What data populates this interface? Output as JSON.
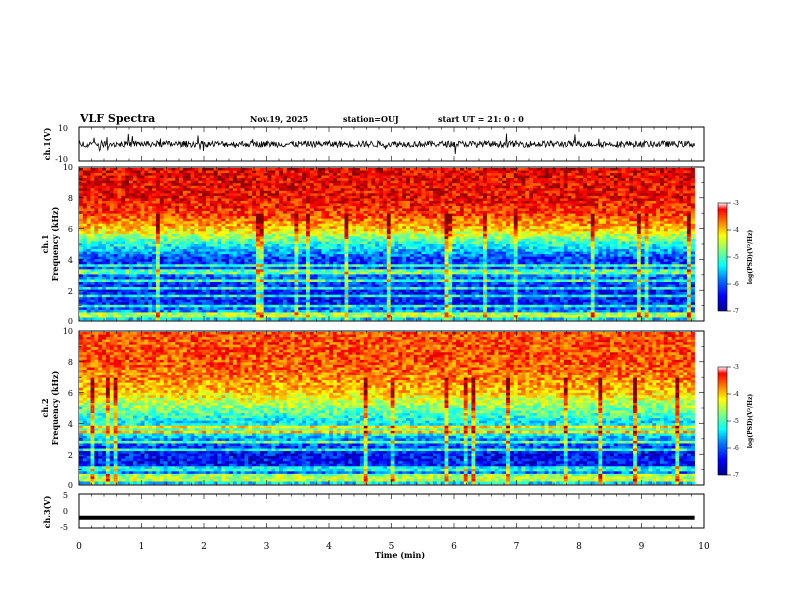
{
  "header": {
    "title": "VLF Spectra",
    "date": "Nov.19, 2025",
    "station": "station=OUJ",
    "start_ut": "start  UT =   21: 0  : 0"
  },
  "colors": {
    "waveform": "#000000",
    "colormap": [
      "#00007f",
      "#0000ff",
      "#007fff",
      "#00ffff",
      "#7fff7f",
      "#ffff00",
      "#ff7f00",
      "#ff0000",
      "#7f0000"
    ]
  },
  "chart_data": [
    {
      "type": "line",
      "panel": "waveform-ch1",
      "ylabel": "ch.1(V)",
      "ylim": [
        -10,
        10
      ],
      "yticks": [
        "10",
        "-10"
      ],
      "xlim": [
        0,
        10
      ],
      "series": [
        {
          "baseline": 0,
          "typical_amplitude": 2
        }
      ]
    },
    {
      "type": "heatmap",
      "panel": "spectrogram-ch1",
      "ylabel_line1": "ch.1",
      "ylabel_line2": "Frequency (kHz)",
      "ylim": [
        0,
        10
      ],
      "yticks": [
        "0",
        "2",
        "4",
        "6",
        "8",
        "10"
      ],
      "xlim": [
        0,
        9.85
      ],
      "colorbar": {
        "label": "log(PSD)(V²/Hz)",
        "range": [
          -7,
          -3
        ],
        "ticks": [
          "-3",
          "-4",
          "-5",
          "-6",
          "-7"
        ]
      },
      "profile_khz": [
        {
          "f": 0,
          "v": -5.6
        },
        {
          "f": 0.5,
          "v": -5.8
        },
        {
          "f": 1,
          "v": -6.4
        },
        {
          "f": 2,
          "v": -6.4
        },
        {
          "f": 3,
          "v": -6.0
        },
        {
          "f": 4,
          "v": -6.3
        },
        {
          "f": 5,
          "v": -5.4
        },
        {
          "f": 6,
          "v": -4.3
        },
        {
          "f": 7,
          "v": -3.7
        },
        {
          "f": 8,
          "v": -3.5
        },
        {
          "f": 10,
          "v": -3.4
        }
      ],
      "tone_lines_khz": [
        0.2,
        0.4,
        0.9,
        1.6,
        2.1,
        2.6,
        3.1,
        3.3,
        3.6
      ]
    },
    {
      "type": "heatmap",
      "panel": "spectrogram-ch2",
      "ylabel_line1": "ch.2",
      "ylabel_line2": "Frequency (kHz)",
      "ylim": [
        0,
        10
      ],
      "yticks": [
        "0",
        "2",
        "4",
        "6",
        "8",
        "10"
      ],
      "xlim": [
        0,
        9.85
      ],
      "colorbar": {
        "label": "log(PSD)(V²/Hz)",
        "range": [
          -7,
          -3
        ],
        "ticks": [
          "-3",
          "-4",
          "-5",
          "-6",
          "-7"
        ]
      },
      "profile_khz": [
        {
          "f": 0,
          "v": -5.6
        },
        {
          "f": 0.5,
          "v": -5.7
        },
        {
          "f": 1,
          "v": -6.4
        },
        {
          "f": 2,
          "v": -6.5
        },
        {
          "f": 3,
          "v": -5.9
        },
        {
          "f": 3.5,
          "v": -5.0
        },
        {
          "f": 4,
          "v": -5.6
        },
        {
          "f": 5,
          "v": -5.0
        },
        {
          "f": 6,
          "v": -4.3
        },
        {
          "f": 7,
          "v": -4.0
        },
        {
          "f": 8,
          "v": -3.8
        },
        {
          "f": 10,
          "v": -3.8
        }
      ],
      "tone_lines_khz": [
        0.2,
        0.5,
        1.0,
        2.2,
        2.8,
        3.4,
        3.7
      ]
    },
    {
      "type": "line",
      "panel": "waveform-ch3",
      "ylabel": "ch.3(V)",
      "ylim": [
        -5,
        5
      ],
      "yticks": [
        "5",
        "0",
        "-5"
      ],
      "xlim": [
        0,
        10
      ],
      "xlabel": "Time (min)",
      "xticks": [
        "0",
        "1",
        "2",
        "3",
        "4",
        "5",
        "6",
        "7",
        "8",
        "9",
        "10"
      ],
      "series": [
        {
          "baseline": -2,
          "typical_amplitude": 0.1
        }
      ]
    }
  ]
}
